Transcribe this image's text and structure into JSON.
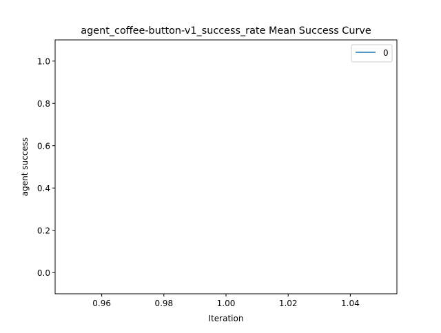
{
  "chart_data": {
    "type": "line",
    "title": "agent_coffee-button-v1_success_rate Mean Success Curve",
    "xlabel": "Iteration",
    "ylabel": "agent success",
    "xlim": [
      0.945,
      1.055
    ],
    "ylim": [
      -0.1,
      1.1
    ],
    "x_ticks": [
      "0.96",
      "0.98",
      "1.00",
      "1.02",
      "1.04"
    ],
    "y_ticks": [
      "0.0",
      "0.2",
      "0.4",
      "0.6",
      "0.8",
      "1.0"
    ],
    "grid": false,
    "legend_position": "top-right",
    "series": [
      {
        "name": "0",
        "color": "#1f77b4",
        "x": [],
        "y": []
      }
    ]
  }
}
